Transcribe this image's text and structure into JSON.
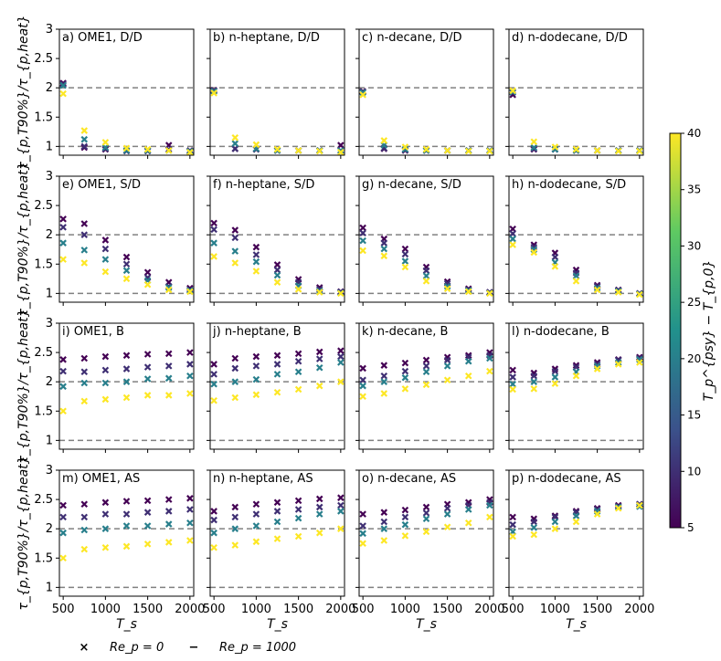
{
  "chart_data": {
    "type": "scatter",
    "layout": "4x4 small multiples",
    "ylabel": "τ_{p,T90%}/τ_{p,heat}",
    "xlabel": "T_s",
    "xticks": [
      500,
      1000,
      1500,
      2000
    ],
    "ylim": [
      0.85,
      3.0
    ],
    "yticks": [
      1,
      1.5,
      2,
      2.5,
      3
    ],
    "x": [
      500,
      750,
      1000,
      1250,
      1500,
      1750,
      2000
    ],
    "reference_lines": [
      1,
      2
    ],
    "colorbar": {
      "label": "T_p^{psy} − T_{p,0}",
      "min": 5,
      "max": 40,
      "ticks": [
        5,
        10,
        15,
        20,
        25,
        30,
        35,
        40
      ],
      "colormap": [
        "#440154",
        "#3b528b",
        "#21918c",
        "#5ec962",
        "#fde725"
      ]
    },
    "marker_legend": [
      {
        "marker": "×",
        "label": "Re_p = 0"
      },
      {
        "marker": "−",
        "label": "Re_p = 1000"
      }
    ],
    "panels": [
      {
        "title": "a) OME1, D/D",
        "series": [
          {
            "dT": 5,
            "values": [
              2.08,
              0.98,
              0.95,
              0.93,
              0.93,
              1.02,
              0.93
            ]
          },
          {
            "dT": 10,
            "values": [
              2.06,
              1.0,
              0.96,
              0.92,
              0.92,
              0.95,
              0.91
            ]
          },
          {
            "dT": 20,
            "values": [
              2.04,
              1.12,
              0.98,
              0.93,
              0.93,
              0.93,
              0.92
            ]
          },
          {
            "dT": 40,
            "values": [
              1.9,
              1.27,
              1.07,
              0.97,
              0.95,
              0.93,
              0.9
            ]
          }
        ]
      },
      {
        "title": "b) n-heptane, D/D",
        "series": [
          {
            "dT": 5,
            "values": [
              1.96,
              0.96,
              0.95,
              0.93,
              0.93,
              0.93,
              1.02
            ]
          },
          {
            "dT": 10,
            "values": [
              1.95,
              0.96,
              0.95,
              0.93,
              0.93,
              0.93,
              0.93
            ]
          },
          {
            "dT": 20,
            "values": [
              1.94,
              1.05,
              0.96,
              0.93,
              0.93,
              0.93,
              0.93
            ]
          },
          {
            "dT": 40,
            "values": [
              1.91,
              1.15,
              1.03,
              0.95,
              0.93,
              0.92,
              0.9
            ]
          }
        ]
      },
      {
        "title": "c) n-decane, D/D",
        "series": [
          {
            "dT": 5,
            "values": [
              1.94,
              0.96,
              0.93,
              0.93,
              0.93,
              0.93,
              0.93
            ]
          },
          {
            "dT": 10,
            "values": [
              1.93,
              0.97,
              0.94,
              0.93,
              0.93,
              0.93,
              0.93
            ]
          },
          {
            "dT": 20,
            "values": [
              1.92,
              1.02,
              0.95,
              0.93,
              0.93,
              0.93,
              0.93
            ]
          },
          {
            "dT": 40,
            "values": [
              1.88,
              1.1,
              0.99,
              0.95,
              0.93,
              0.92,
              0.92
            ]
          }
        ]
      },
      {
        "title": "d) n-dodecane, D/D",
        "series": [
          {
            "dT": 5,
            "values": [
              1.88,
              0.95,
              0.95,
              0.93,
              0.93,
              0.93,
              0.93
            ]
          },
          {
            "dT": 10,
            "values": [
              1.92,
              0.96,
              0.95,
              0.93,
              0.93,
              0.93,
              0.93
            ]
          },
          {
            "dT": 20,
            "values": [
              1.93,
              0.98,
              0.95,
              0.93,
              0.93,
              0.93,
              0.93
            ]
          },
          {
            "dT": 40,
            "values": [
              1.95,
              1.08,
              0.99,
              0.95,
              0.93,
              0.92,
              0.92
            ]
          }
        ]
      },
      {
        "title": "e) OME1, S/D",
        "series": [
          {
            "dT": 5,
            "values": [
              2.27,
              2.19,
              1.91,
              1.62,
              1.36,
              1.19,
              1.09
            ]
          },
          {
            "dT": 10,
            "values": [
              2.13,
              2.0,
              1.76,
              1.5,
              1.27,
              1.12,
              1.06
            ]
          },
          {
            "dT": 20,
            "values": [
              1.86,
              1.74,
              1.58,
              1.39,
              1.22,
              1.1,
              1.05
            ]
          },
          {
            "dT": 40,
            "values": [
              1.58,
              1.52,
              1.37,
              1.25,
              1.15,
              1.06,
              1.03
            ]
          }
        ]
      },
      {
        "title": "f) n-heptane, S/D",
        "series": [
          {
            "dT": 5,
            "values": [
              2.2,
              2.08,
              1.79,
              1.49,
              1.24,
              1.1,
              1.03
            ]
          },
          {
            "dT": 10,
            "values": [
              2.09,
              1.95,
              1.66,
              1.4,
              1.19,
              1.07,
              1.02
            ]
          },
          {
            "dT": 20,
            "values": [
              1.86,
              1.72,
              1.54,
              1.31,
              1.13,
              1.04,
              1.01
            ]
          },
          {
            "dT": 40,
            "values": [
              1.63,
              1.52,
              1.38,
              1.19,
              1.07,
              1.02,
              1.0
            ]
          }
        ]
      },
      {
        "title": "g) n-decane, S/D",
        "series": [
          {
            "dT": 5,
            "values": [
              2.12,
              1.93,
              1.76,
              1.45,
              1.2,
              1.08,
              1.02
            ]
          },
          {
            "dT": 10,
            "values": [
              2.03,
              1.86,
              1.67,
              1.39,
              1.17,
              1.06,
              1.01
            ]
          },
          {
            "dT": 20,
            "values": [
              1.9,
              1.76,
              1.55,
              1.3,
              1.12,
              1.05,
              1.01
            ]
          },
          {
            "dT": 40,
            "values": [
              1.73,
              1.64,
              1.45,
              1.21,
              1.08,
              1.03,
              1.0
            ]
          }
        ]
      },
      {
        "title": "h) n-dodecane, S/D",
        "series": [
          {
            "dT": 5,
            "values": [
              2.1,
              1.83,
              1.69,
              1.4,
              1.14,
              1.06,
              1.0
            ]
          },
          {
            "dT": 10,
            "values": [
              2.02,
              1.79,
              1.62,
              1.35,
              1.12,
              1.05,
              1.0
            ]
          },
          {
            "dT": 20,
            "values": [
              1.93,
              1.75,
              1.53,
              1.3,
              1.09,
              1.04,
              0.99
            ]
          },
          {
            "dT": 40,
            "values": [
              1.83,
              1.7,
              1.46,
              1.21,
              1.06,
              1.02,
              0.98
            ]
          }
        ]
      },
      {
        "title": "i) OME1, B",
        "series": [
          {
            "dT": 5,
            "values": [
              2.38,
              2.4,
              2.43,
              2.45,
              2.47,
              2.48,
              2.5
            ]
          },
          {
            "dT": 10,
            "values": [
              2.18,
              2.17,
              2.2,
              2.22,
              2.25,
              2.27,
              2.3
            ]
          },
          {
            "dT": 20,
            "values": [
              1.92,
              1.98,
              1.98,
              2.0,
              2.05,
              2.06,
              2.1
            ]
          },
          {
            "dT": 40,
            "values": [
              1.5,
              1.67,
              1.7,
              1.73,
              1.77,
              1.77,
              1.8
            ]
          }
        ]
      },
      {
        "title": "j) n-heptane, B",
        "series": [
          {
            "dT": 5,
            "values": [
              2.3,
              2.4,
              2.43,
              2.45,
              2.48,
              2.51,
              2.53
            ]
          },
          {
            "dT": 10,
            "values": [
              2.13,
              2.23,
              2.27,
              2.3,
              2.35,
              2.39,
              2.43
            ]
          },
          {
            "dT": 20,
            "values": [
              1.96,
              2.0,
              2.04,
              2.13,
              2.17,
              2.24,
              2.33
            ]
          },
          {
            "dT": 40,
            "values": [
              1.68,
              1.73,
              1.78,
              1.82,
              1.87,
              1.93,
              2.0
            ]
          }
        ]
      },
      {
        "title": "k) n-decane, B",
        "series": [
          {
            "dT": 5,
            "values": [
              2.23,
              2.28,
              2.32,
              2.37,
              2.42,
              2.45,
              2.5
            ]
          },
          {
            "dT": 10,
            "values": [
              2.03,
              2.1,
              2.18,
              2.27,
              2.37,
              2.42,
              2.45
            ]
          },
          {
            "dT": 20,
            "values": [
              1.93,
              2.0,
              2.07,
              2.17,
              2.27,
              2.35,
              2.4
            ]
          },
          {
            "dT": 40,
            "values": [
              1.75,
              1.8,
              1.88,
              1.95,
              2.03,
              2.1,
              2.18
            ]
          }
        ]
      },
      {
        "title": "l) n-dodecane, B",
        "series": [
          {
            "dT": 5,
            "values": [
              2.2,
              2.15,
              2.22,
              2.28,
              2.33,
              2.38,
              2.42
            ]
          },
          {
            "dT": 10,
            "values": [
              2.08,
              2.1,
              2.18,
              2.25,
              2.3,
              2.37,
              2.4
            ]
          },
          {
            "dT": 20,
            "values": [
              1.96,
              2.0,
              2.08,
              2.17,
              2.27,
              2.33,
              2.38
            ]
          },
          {
            "dT": 40,
            "values": [
              1.87,
              1.88,
              1.97,
              2.1,
              2.22,
              2.3,
              2.33
            ]
          }
        ]
      },
      {
        "title": "m) OME1, AS",
        "series": [
          {
            "dT": 5,
            "values": [
              2.4,
              2.42,
              2.45,
              2.47,
              2.48,
              2.5,
              2.52
            ]
          },
          {
            "dT": 10,
            "values": [
              2.2,
              2.2,
              2.25,
              2.25,
              2.28,
              2.3,
              2.33
            ]
          },
          {
            "dT": 20,
            "values": [
              1.93,
              1.98,
              2.0,
              2.05,
              2.05,
              2.08,
              2.1
            ]
          },
          {
            "dT": 40,
            "values": [
              1.5,
              1.65,
              1.68,
              1.7,
              1.74,
              1.77,
              1.8
            ]
          }
        ]
      },
      {
        "title": "n) n-heptane, AS",
        "series": [
          {
            "dT": 5,
            "values": [
              2.3,
              2.37,
              2.42,
              2.45,
              2.48,
              2.51,
              2.53
            ]
          },
          {
            "dT": 10,
            "values": [
              2.15,
              2.2,
              2.25,
              2.3,
              2.33,
              2.37,
              2.4
            ]
          },
          {
            "dT": 20,
            "values": [
              1.93,
              2.0,
              2.05,
              2.12,
              2.18,
              2.25,
              2.3
            ]
          },
          {
            "dT": 40,
            "values": [
              1.68,
              1.72,
              1.78,
              1.83,
              1.87,
              1.93,
              2.0
            ]
          }
        ]
      },
      {
        "title": "o) n-decane, AS",
        "series": [
          {
            "dT": 5,
            "values": [
              2.25,
              2.28,
              2.32,
              2.37,
              2.42,
              2.45,
              2.5
            ]
          },
          {
            "dT": 10,
            "values": [
              2.05,
              2.12,
              2.2,
              2.27,
              2.35,
              2.4,
              2.45
            ]
          },
          {
            "dT": 20,
            "values": [
              1.92,
              2.0,
              2.07,
              2.17,
              2.25,
              2.33,
              2.4
            ]
          },
          {
            "dT": 40,
            "values": [
              1.75,
              1.8,
              1.88,
              1.95,
              2.03,
              2.1,
              2.2
            ]
          }
        ]
      },
      {
        "title": "p) n-dodecane, AS",
        "series": [
          {
            "dT": 5,
            "values": [
              2.2,
              2.17,
              2.22,
              2.3,
              2.35,
              2.4,
              2.42
            ]
          },
          {
            "dT": 10,
            "values": [
              2.07,
              2.12,
              2.2,
              2.28,
              2.33,
              2.38,
              2.42
            ]
          },
          {
            "dT": 20,
            "values": [
              1.95,
              2.02,
              2.12,
              2.22,
              2.3,
              2.37,
              2.38
            ]
          },
          {
            "dT": 40,
            "values": [
              1.87,
              1.9,
              2.0,
              2.12,
              2.25,
              2.35,
              2.4
            ]
          }
        ]
      }
    ]
  }
}
